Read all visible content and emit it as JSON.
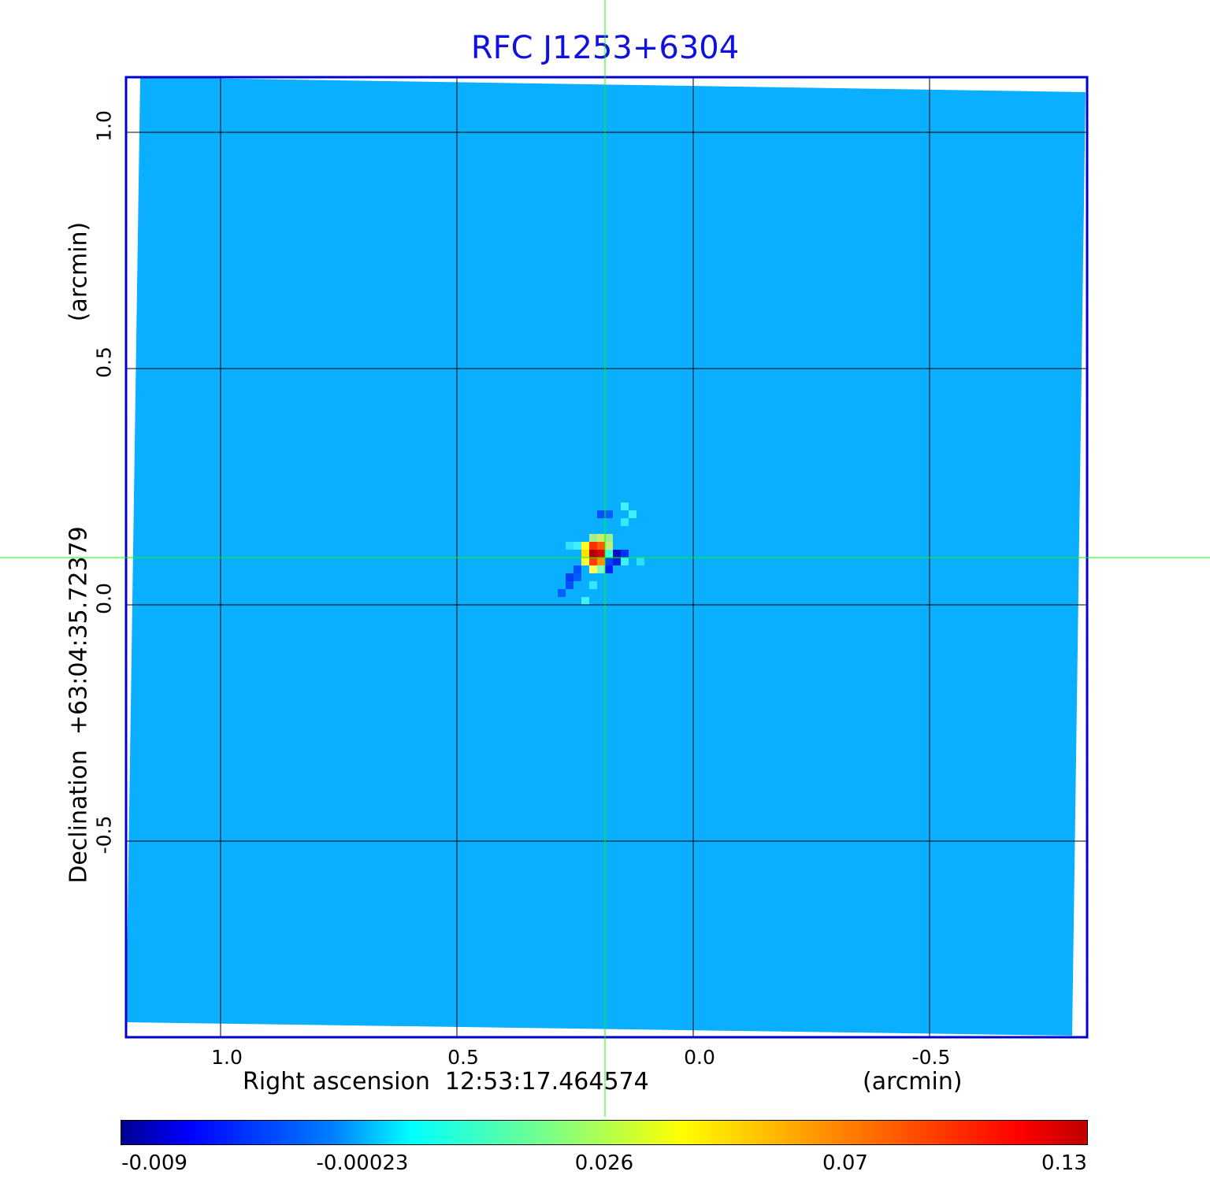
{
  "chart_data": {
    "type": "heatmap",
    "title": "RFC J1253+6304",
    "xlabel": "Right ascension  12:53:17.464574",
    "xunit": "(arcmin)",
    "ylabel": "Declination  +63:04:35.72379",
    "yunit": "(arcmin)",
    "x_ticks": [
      "1.0",
      "0.5",
      "0.0",
      "-0.5"
    ],
    "y_ticks": [
      "1.0",
      "0.5",
      "0.0",
      "-0.5"
    ],
    "xlim": [
      1.2,
      -0.83
    ],
    "ylim": [
      -0.915,
      1.115
    ],
    "grid": true,
    "colormap": "jet",
    "colorbar": {
      "ticks": [
        "-0.009",
        "-0.00023",
        "0.026",
        "0.07",
        "0.13"
      ],
      "range": [
        -0.009,
        0.13
      ],
      "placement": "bottom"
    },
    "crosshair": {
      "x": 0.187,
      "y": 0.1,
      "color": "#00ff00"
    },
    "background_level": -0.002,
    "peak_value": 0.13,
    "title_color": "#1010e0",
    "frame_color": "#0000cc"
  }
}
